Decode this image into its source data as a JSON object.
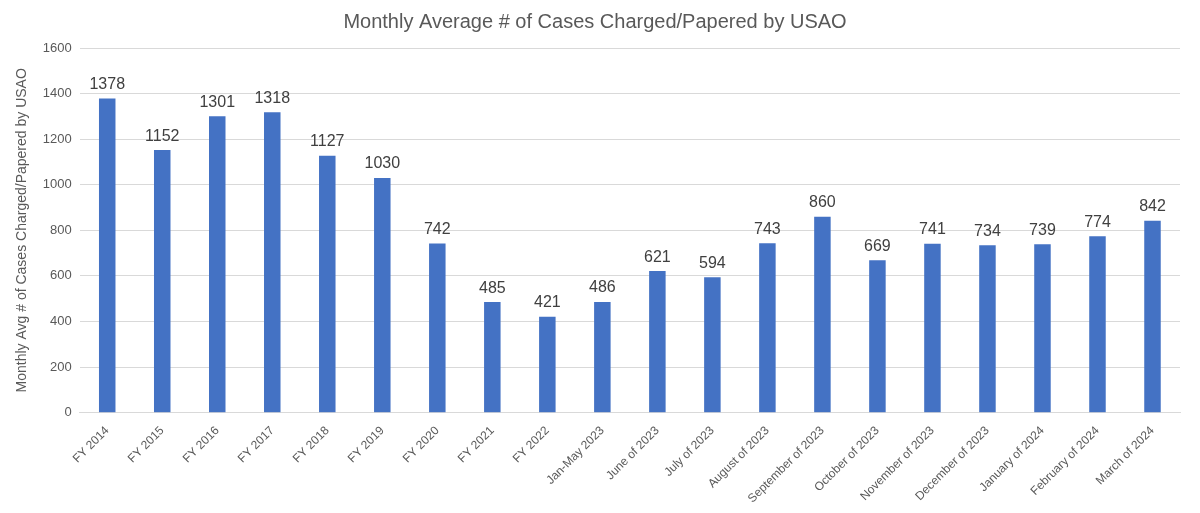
{
  "chart_data": {
    "type": "bar",
    "title": "Monthly Average # of Cases Charged/Papered by USAO",
    "ylabel": "Monthly Avg # of Cases Charged/Papered by USAO",
    "categories": [
      "FY 2014",
      "FY 2015",
      "FY 2016",
      "FY 2017",
      "FY 2018",
      "FY 2019",
      "FY 2020",
      "FY 2021",
      "FY 2022",
      "Jan-May 2023",
      "June of 2023",
      "July of 2023",
      "August of 2023",
      "September of 2023",
      "October of 2023",
      "November of 2023",
      "December of 2023",
      "January of 2024",
      "February of 2024",
      "March of 2024"
    ],
    "values": [
      1378,
      1152,
      1301,
      1318,
      1127,
      1030,
      742,
      485,
      421,
      486,
      621,
      594,
      743,
      860,
      669,
      741,
      734,
      739,
      774,
      842
    ],
    "color": "#4472c4",
    "ylim": [
      0,
      1600
    ],
    "yticks": [
      0,
      200,
      400,
      600,
      800,
      1000,
      1200,
      1400,
      1600
    ],
    "grid": true,
    "data_labels": true
  }
}
